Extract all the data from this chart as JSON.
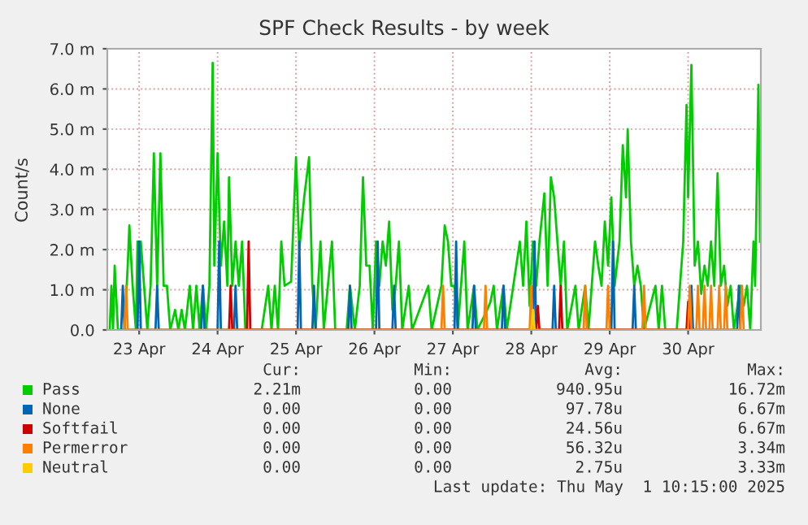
{
  "chart_data": {
    "type": "line",
    "title": "SPF Check Results - by week",
    "ylabel": "Count/s",
    "legend": "bottom",
    "grid": true,
    "line_style": "solid",
    "xlim": [
      "2025-04-23T02:15",
      "2025-05-01T10:15"
    ],
    "xticks": [
      {
        "value": "2025-04-23T12:00",
        "label": "23 Apr"
      },
      {
        "value": "2025-04-24T12:00",
        "label": "24 Apr"
      },
      {
        "value": "2025-04-25T12:00",
        "label": "25 Apr"
      },
      {
        "value": "2025-04-26T12:00",
        "label": "26 Apr"
      },
      {
        "value": "2025-04-27T12:00",
        "label": "27 Apr"
      },
      {
        "value": "2025-04-28T12:00",
        "label": "28 Apr"
      },
      {
        "value": "2025-04-29T12:00",
        "label": "29 Apr"
      },
      {
        "value": "2025-04-30T12:00",
        "label": "30 Apr"
      }
    ],
    "ylim": [
      0,
      7
    ],
    "yticks": [
      {
        "value": 0,
        "label": "0.0"
      },
      {
        "value": 1,
        "label": "1.0 m"
      },
      {
        "value": 2,
        "label": "2.0 m"
      },
      {
        "value": 3,
        "label": "3.0 m"
      },
      {
        "value": 4,
        "label": "4.0 m"
      },
      {
        "value": 5,
        "label": "5.0 m"
      },
      {
        "value": 6,
        "label": "6.0 m"
      },
      {
        "value": 7,
        "label": "7.0 m"
      }
    ],
    "series": [
      {
        "name": "Pass",
        "color": "#00cc00",
        "x": [
          "2025-04-23T03:00",
          "2025-04-23T03:30",
          "2025-04-23T04:00",
          "2025-04-23T04:30",
          "2025-04-23T05:30",
          "2025-04-23T07:30",
          "2025-04-23T08:30",
          "2025-04-23T09:00",
          "2025-04-23T10:00",
          "2025-04-23T11:00",
          "2025-04-23T11:30",
          "2025-04-23T12:00",
          "2025-04-23T12:30",
          "2025-04-23T13:30",
          "2025-04-23T14:30",
          "2025-04-23T15:30",
          "2025-04-23T16:30",
          "2025-04-23T17:30",
          "2025-04-23T18:30",
          "2025-04-23T19:30",
          "2025-04-23T20:30",
          "2025-04-23T21:30",
          "2025-04-23T23:00",
          "2025-04-24T00:00",
          "2025-04-24T01:00",
          "2025-04-24T02:00",
          "2025-04-24T03:30",
          "2025-04-24T04:30",
          "2025-04-24T05:30",
          "2025-04-24T06:30",
          "2025-04-24T07:30",
          "2025-04-24T08:30",
          "2025-04-24T09:30",
          "2025-04-24T10:30",
          "2025-04-24T11:00",
          "2025-04-24T12:00",
          "2025-04-24T13:00",
          "2025-04-24T14:00",
          "2025-04-24T15:00",
          "2025-04-24T15:30",
          "2025-04-24T16:30",
          "2025-04-24T17:30",
          "2025-04-24T18:30",
          "2025-04-24T19:30",
          "2025-04-24T20:30",
          "2025-04-25T01:30",
          "2025-04-25T03:30",
          "2025-04-25T04:30",
          "2025-04-25T05:30",
          "2025-04-25T06:30",
          "2025-04-25T07:30",
          "2025-04-25T08:30",
          "2025-04-25T10:30",
          "2025-04-25T12:00",
          "2025-04-25T13:00",
          "2025-04-25T14:30",
          "2025-04-25T16:00",
          "2025-04-25T17:00",
          "2025-04-25T18:00",
          "2025-04-25T19:30",
          "2025-04-25T20:30",
          "2025-04-25T23:00",
          "2025-04-26T00:00",
          "2025-04-26T03:30",
          "2025-04-26T04:30",
          "2025-04-26T06:00",
          "2025-04-26T07:30",
          "2025-04-26T08:30",
          "2025-04-26T09:30",
          "2025-04-26T10:30",
          "2025-04-26T11:30",
          "2025-04-26T12:30",
          "2025-04-26T13:30",
          "2025-04-26T14:30",
          "2025-04-26T15:30",
          "2025-04-26T16:30",
          "2025-04-26T17:30",
          "2025-04-26T18:30",
          "2025-04-26T19:30",
          "2025-04-26T20:30",
          "2025-04-26T22:30",
          "2025-04-26T23:30",
          "2025-04-27T04:30",
          "2025-04-27T05:30",
          "2025-04-27T08:30",
          "2025-04-27T09:30",
          "2025-04-27T10:30",
          "2025-04-27T11:30",
          "2025-04-27T12:30",
          "2025-04-27T13:30",
          "2025-04-27T15:30",
          "2025-04-27T16:30",
          "2025-04-27T18:30",
          "2025-04-27T19:30",
          "2025-04-27T22:30",
          "2025-04-27T23:30",
          "2025-04-28T00:30",
          "2025-04-28T01:30",
          "2025-04-28T03:30",
          "2025-04-28T04:30",
          "2025-04-28T08:30",
          "2025-04-28T09:30",
          "2025-04-28T10:30",
          "2025-04-28T11:30",
          "2025-04-28T12:30",
          "2025-04-28T13:30",
          "2025-04-28T14:30",
          "2025-04-28T16:00",
          "2025-04-28T17:00",
          "2025-04-28T18:00",
          "2025-04-28T19:00",
          "2025-04-28T20:00",
          "2025-04-28T21:00",
          "2025-04-28T22:00",
          "2025-04-28T23:00",
          "2025-04-29T01:30",
          "2025-04-29T02:30",
          "2025-04-29T04:30",
          "2025-04-29T05:30",
          "2025-04-29T07:30",
          "2025-04-29T08:30",
          "2025-04-29T09:30",
          "2025-04-29T10:30",
          "2025-04-29T11:30",
          "2025-04-29T12:30",
          "2025-04-29T13:30",
          "2025-04-29T15:00",
          "2025-04-29T16:00",
          "2025-04-29T17:00",
          "2025-04-29T17:30",
          "2025-04-29T18:30",
          "2025-04-29T19:30",
          "2025-04-29T20:30",
          "2025-04-29T21:30",
          "2025-04-29T22:30",
          "2025-04-30T02:00",
          "2025-04-30T03:00",
          "2025-04-30T04:00",
          "2025-04-30T05:00",
          "2025-04-30T08:30",
          "2025-04-30T09:30",
          "2025-04-30T10:30",
          "2025-04-30T11:30",
          "2025-04-30T12:00",
          "2025-04-30T13:00",
          "2025-04-30T14:00",
          "2025-04-30T15:00",
          "2025-04-30T16:00",
          "2025-04-30T17:00",
          "2025-04-30T18:00",
          "2025-04-30T19:00",
          "2025-04-30T20:00",
          "2025-04-30T21:00",
          "2025-04-30T22:00",
          "2025-04-30T23:00",
          "2025-05-01T00:00",
          "2025-05-01T01:00",
          "2025-05-01T02:00",
          "2025-05-01T04:00",
          "2025-05-01T05:00",
          "2025-05-01T06:00",
          "2025-05-01T07:00",
          "2025-05-01T08:00",
          "2025-05-01T08:30",
          "2025-05-01T09:30",
          "2025-05-01T10:00"
        ],
        "values": [
          0,
          1.1,
          0,
          1.6,
          0,
          0,
          1.6,
          2.6,
          1.1,
          0,
          2.2,
          1.1,
          2.2,
          1.1,
          0,
          1.1,
          4.4,
          1.1,
          4.4,
          1.1,
          1.1,
          0,
          0.5,
          0,
          0.5,
          0,
          1.1,
          0,
          1.1,
          0,
          1.1,
          0,
          1.1,
          6.65,
          1.6,
          4.4,
          1.6,
          2.7,
          1.1,
          3.8,
          1.1,
          2.2,
          1.1,
          2.2,
          0,
          0,
          1.1,
          0,
          1.1,
          0,
          2.2,
          1.1,
          1.2,
          4.3,
          2.0,
          3.3,
          4.3,
          1.1,
          0,
          2.2,
          0,
          2.2,
          0,
          0,
          1.1,
          0,
          1.1,
          3.8,
          1.6,
          1.6,
          0,
          2.2,
          1.1,
          2.2,
          1.6,
          2.7,
          0.5,
          1.1,
          2.2,
          0,
          1.1,
          0,
          1.1,
          0,
          1.1,
          2.6,
          2.2,
          1.1,
          1.1,
          0,
          2.2,
          0,
          1.1,
          0,
          0.5,
          0.7,
          1.1,
          0,
          1.1,
          0,
          2.2,
          1.1,
          2.7,
          0.6,
          2.2,
          1.1,
          2.2,
          3.4,
          1.1,
          3.8,
          3.3,
          2.2,
          1.1,
          2.2,
          0,
          1.1,
          0,
          1.1,
          0,
          2.2,
          1.6,
          1.1,
          2.7,
          1.6,
          3.3,
          1.1,
          2.2,
          4.6,
          3.3,
          5.0,
          2.2,
          1.1,
          1.6,
          1.1,
          0,
          1.1,
          0,
          1.1,
          0,
          0,
          1.1,
          2.2,
          5.6,
          3.3,
          6.6,
          1.6,
          2.2,
          0.9,
          1.6,
          1.1,
          2.2,
          1.1,
          3.9,
          1.1,
          1.6,
          0.6,
          1.1,
          0,
          1.1,
          0.6,
          1.1,
          0,
          2.2,
          1.1,
          6.1,
          2.2
        ]
      },
      {
        "name": "None",
        "color": "#0066b3",
        "x": [
          "2025-04-23T06:30",
          "2025-04-23T07:00",
          "2025-04-23T07:30",
          "2025-04-23T11:30",
          "2025-04-23T12:00",
          "2025-04-23T12:30",
          "2025-04-23T17:00",
          "2025-04-23T17:30",
          "2025-04-23T18:00",
          "2025-04-24T07:00",
          "2025-04-24T07:30",
          "2025-04-24T08:00",
          "2025-04-24T12:00",
          "2025-04-24T12:30",
          "2025-04-24T13:00",
          "2025-04-24T17:00",
          "2025-04-24T17:30",
          "2025-04-24T18:00",
          "2025-04-25T12:30",
          "2025-04-25T13:00",
          "2025-04-25T13:30",
          "2025-04-25T17:00",
          "2025-04-25T17:30",
          "2025-04-25T18:00",
          "2025-04-26T04:00",
          "2025-04-26T04:30",
          "2025-04-26T05:00",
          "2025-04-26T12:30",
          "2025-04-26T13:00",
          "2025-04-26T13:30",
          "2025-04-26T17:30",
          "2025-04-26T18:00",
          "2025-04-26T18:30",
          "2025-04-27T12:30",
          "2025-04-27T13:00",
          "2025-04-27T13:30",
          "2025-04-27T18:00",
          "2025-04-27T18:30",
          "2025-04-27T19:00",
          "2025-04-28T03:00",
          "2025-04-28T03:30",
          "2025-04-28T04:00",
          "2025-04-28T12:30",
          "2025-04-28T13:00",
          "2025-04-28T13:30",
          "2025-04-28T18:30",
          "2025-04-28T19:00",
          "2025-04-28T19:30",
          "2025-04-29T12:30",
          "2025-04-29T13:00",
          "2025-04-29T13:30",
          "2025-04-29T19:00",
          "2025-04-29T19:30",
          "2025-04-29T20:00",
          "2025-04-30T12:30",
          "2025-04-30T13:00",
          "2025-04-30T13:30",
          "2025-05-01T03:00",
          "2025-05-01T03:30",
          "2025-05-01T04:00"
        ],
        "values": [
          0,
          1.1,
          0,
          0,
          2.2,
          0,
          0,
          1.1,
          0,
          0,
          1.1,
          0,
          0,
          2.2,
          0,
          0,
          1.1,
          0,
          0,
          2.2,
          0,
          0,
          1.1,
          0,
          0,
          1.1,
          0,
          0,
          2.2,
          0,
          0,
          1.1,
          0,
          0,
          2.2,
          0,
          0,
          1.1,
          0,
          0,
          1.1,
          0,
          0,
          2.2,
          0,
          0,
          1.1,
          0,
          0,
          2.2,
          0,
          0,
          1.1,
          0,
          0,
          1.1,
          0,
          0,
          1.1,
          0
        ]
      },
      {
        "name": "Softfail",
        "color": "#cc0000",
        "x": [
          "2025-04-24T15:30",
          "2025-04-24T16:00",
          "2025-04-24T16:30",
          "2025-04-24T21:00",
          "2025-04-24T21:30",
          "2025-04-24T22:00",
          "2025-04-28T13:30",
          "2025-04-28T14:00",
          "2025-04-28T14:30",
          "2025-04-28T20:30",
          "2025-04-28T21:00",
          "2025-04-28T21:30",
          "2025-04-30T11:30",
          "2025-04-30T12:00",
          "2025-04-30T12:30"
        ],
        "values": [
          0,
          1.1,
          0,
          0,
          2.2,
          0,
          0,
          0.6,
          0,
          0,
          1.1,
          0,
          0,
          0.7,
          0
        ]
      },
      {
        "name": "Permerror",
        "color": "#ff8000",
        "x": [
          "2025-04-23T07:30",
          "2025-04-23T08:00",
          "2025-04-23T08:30",
          "2025-04-27T08:30",
          "2025-04-27T09:00",
          "2025-04-27T09:30",
          "2025-04-27T21:30",
          "2025-04-27T22:00",
          "2025-04-27T22:30",
          "2025-04-28T11:30",
          "2025-04-28T12:00",
          "2025-04-28T12:30",
          "2025-04-29T04:00",
          "2025-04-29T04:30",
          "2025-04-29T05:00",
          "2025-04-29T11:00",
          "2025-04-29T11:30",
          "2025-04-29T12:00",
          "2025-04-29T22:00",
          "2025-04-29T22:30",
          "2025-04-29T23:00",
          "2025-04-30T12:00",
          "2025-04-30T12:30",
          "2025-04-30T13:00",
          "2025-04-30T14:30",
          "2025-04-30T15:00",
          "2025-04-30T15:30",
          "2025-04-30T16:30",
          "2025-04-30T17:00",
          "2025-04-30T17:30",
          "2025-04-30T18:30",
          "2025-04-30T19:00",
          "2025-04-30T19:30",
          "2025-04-30T21:00",
          "2025-04-30T21:30",
          "2025-04-30T22:00",
          "2025-04-30T23:00",
          "2025-04-30T23:30",
          "2025-05-01T00:00",
          "2025-05-01T04:00",
          "2025-05-01T04:30",
          "2025-05-01T05:00"
        ],
        "values": [
          0,
          1.1,
          0,
          0,
          1.1,
          0,
          0,
          1.1,
          0,
          0,
          1.1,
          0,
          0,
          1.1,
          0,
          0,
          1.1,
          0,
          0,
          1.1,
          0,
          0,
          1.1,
          0,
          0,
          1.1,
          0,
          0,
          1.1,
          0,
          0,
          1.1,
          0,
          0,
          1.1,
          0,
          0,
          1.1,
          0,
          0,
          1.1,
          0
        ]
      },
      {
        "name": "Neutral",
        "color": "#ffcc00",
        "x": [
          "2025-04-28T12:00",
          "2025-04-28T12:30",
          "2025-04-28T13:00"
        ],
        "values": [
          0,
          0.5,
          0
        ]
      }
    ],
    "annotations": [
      "Cur:",
      "Min:",
      "Avg:",
      "Max:",
      "2.21m",
      "0.00",
      "940.95u",
      "16.72m",
      "0.00",
      "0.00",
      "97.78u",
      "6.67m",
      "0.00",
      "0.00",
      "24.56u",
      "6.67m",
      "0.00",
      "0.00",
      "56.32u",
      "3.34m",
      "0.00",
      "0.00",
      "2.75u",
      "3.33m",
      "Last update: Thu May  1 10:15:00 2025"
    ]
  }
}
